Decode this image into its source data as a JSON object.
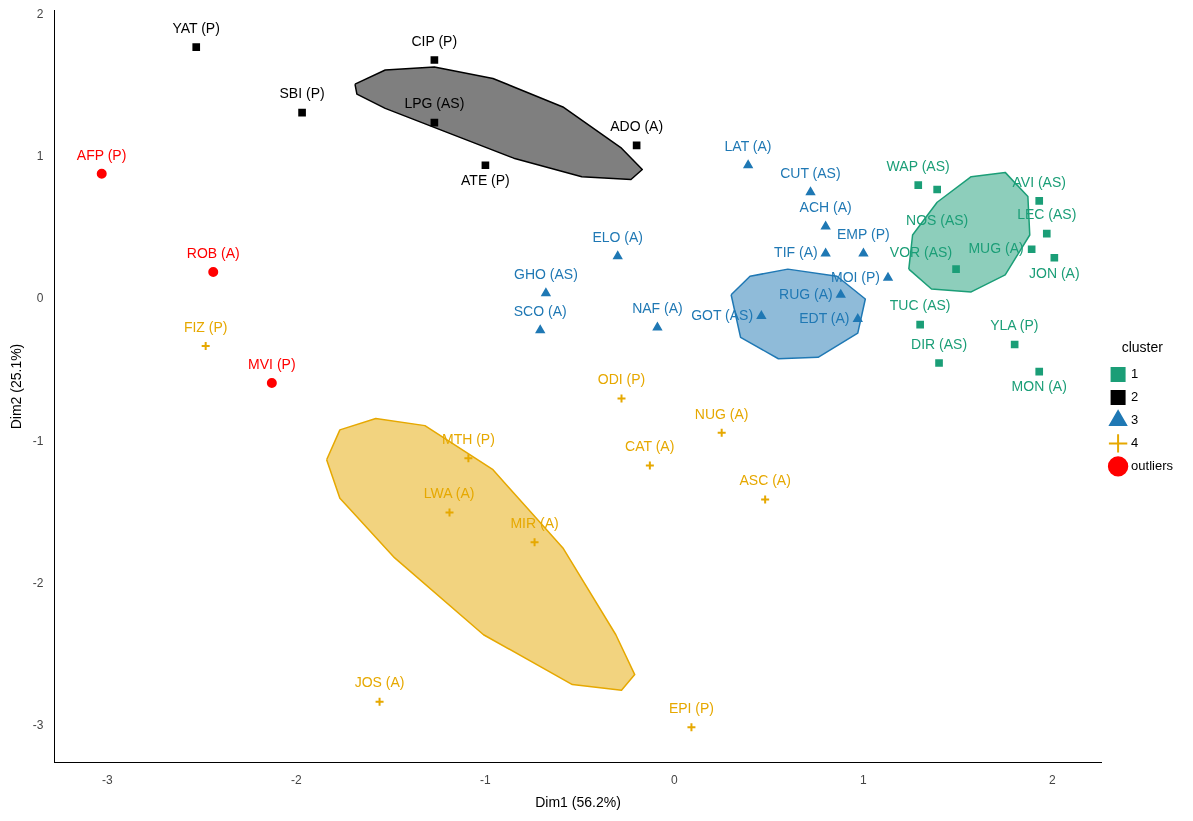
{
  "chart_data": {
    "type": "scatter",
    "xlabel": "Dim1 (56.2%)",
    "ylabel": "Dim2 (25.1%)",
    "legend_title": "cluster",
    "legend": "right",
    "grid": false,
    "xlim": [
      -3.28,
      2.26
    ],
    "ylim": [
      -3.26,
      2.03
    ],
    "xticks": [
      -3,
      -2,
      -1,
      0,
      1,
      2
    ],
    "yticks": [
      -3,
      -2,
      -1,
      0,
      1,
      2
    ],
    "series": [
      {
        "type": "area",
        "color": "#000000",
        "x": [
          -1.69,
          -1.53,
          -1.27,
          -0.96,
          -0.59,
          -0.28,
          -0.17,
          -0.23,
          -0.49,
          -0.85,
          -1.22,
          -1.53,
          -1.68,
          -1.69
        ],
        "values": [
          1.51,
          1.61,
          1.63,
          1.55,
          1.35,
          1.06,
          0.91,
          0.84,
          0.86,
          0.99,
          1.18,
          1.34,
          1.44,
          1.51
        ]
      },
      {
        "type": "area",
        "color": "#1f78b4",
        "x": [
          0.3,
          0.4,
          0.6,
          0.86,
          1.01,
          0.97,
          0.76,
          0.55,
          0.35,
          0.3
        ],
        "values": [
          0.03,
          0.16,
          0.21,
          0.16,
          0.0,
          -0.24,
          -0.41,
          -0.42,
          -0.27,
          0.03
        ]
      },
      {
        "type": "area",
        "color": "#1b9e77",
        "x": [
          1.24,
          1.26,
          1.39,
          1.57,
          1.75,
          1.87,
          1.88,
          1.75,
          1.57,
          1.36,
          1.24
        ],
        "values": [
          0.21,
          0.45,
          0.68,
          0.86,
          0.89,
          0.72,
          0.45,
          0.17,
          0.05,
          0.07,
          0.21
        ]
      },
      {
        "type": "area",
        "color": "#e6a800",
        "x": [
          -1.84,
          -1.77,
          -1.58,
          -1.32,
          -0.96,
          -0.59,
          -0.31,
          -0.21,
          -0.28,
          -0.54,
          -1.01,
          -1.48,
          -1.77,
          -1.84
        ],
        "values": [
          -1.13,
          -0.92,
          -0.84,
          -0.89,
          -1.2,
          -1.75,
          -2.36,
          -2.64,
          -2.75,
          -2.71,
          -2.36,
          -1.82,
          -1.4,
          -1.13
        ]
      },
      {
        "name": "1",
        "marker": "square",
        "color": "#1b9e77",
        "x": [
          1.29,
          1.39,
          1.93,
          1.97,
          1.89,
          2.01,
          1.49,
          1.3,
          1.8,
          1.4,
          1.93
        ],
        "values": [
          0.8,
          0.77,
          0.69,
          0.46,
          0.35,
          0.29,
          0.21,
          -0.18,
          -0.32,
          -0.45,
          -0.51
        ],
        "value_labels": [
          "WAP (AS)",
          "NOS (AS)",
          "AVI (AS)",
          "LEC (AS)",
          "MUG (A)",
          "JON (A)",
          "VOR (AS)",
          "TUC (AS)",
          "YLA (P)",
          "DIR (AS)",
          "MON (A)"
        ]
      },
      {
        "name": "2",
        "marker": "square",
        "color": "#000000",
        "x": [
          -2.53,
          -1.27,
          -1.97,
          -1.27,
          -0.2,
          -1.0
        ],
        "values": [
          1.77,
          1.68,
          1.31,
          1.24,
          1.08,
          0.94
        ],
        "value_labels": [
          "YAT (P)",
          "CIP (P)",
          "SBI (P)",
          "LPG (AS)",
          "ADO (A)",
          "ATE (P)"
        ]
      },
      {
        "name": "3",
        "marker": "triangle",
        "color": "#1f78b4",
        "x": [
          0.39,
          0.72,
          0.8,
          -0.3,
          0.8,
          1.0,
          1.13,
          -0.68,
          0.88,
          -0.71,
          -0.09,
          0.46,
          0.97
        ],
        "values": [
          0.94,
          0.75,
          0.51,
          0.3,
          0.32,
          0.32,
          0.15,
          0.04,
          0.03,
          -0.22,
          -0.2,
          -0.12,
          -0.14
        ],
        "value_labels": [
          "LAT (A)",
          "CUT (AS)",
          "ACH (A)",
          "ELO (A)",
          "TIF (A)",
          "EMP (P)",
          "MOI (P)",
          "GHO (AS)",
          "RUG (A)",
          "SCO (A)",
          "NAF (A)",
          "GOT (AS)",
          "EDT (A)"
        ]
      },
      {
        "name": "4",
        "marker": "cross",
        "color": "#e6a800",
        "x": [
          -2.48,
          -0.28,
          0.25,
          -1.09,
          -0.13,
          -1.19,
          0.48,
          -0.74,
          -1.56,
          0.09
        ],
        "values": [
          -0.33,
          -0.7,
          -0.94,
          -1.12,
          -1.17,
          -1.5,
          -1.41,
          -1.71,
          -2.83,
          -3.01
        ],
        "value_labels": [
          "FIZ (P)",
          "ODI (P)",
          "NUG (A)",
          "MTH (P)",
          "CAT (A)",
          "LWA (A)",
          "ASC (A)",
          "MIR (A)",
          "JOS (A)",
          "EPI (P)"
        ]
      },
      {
        "name": "outliers",
        "marker": "circle",
        "color": "#ff0000",
        "x": [
          -3.03,
          -2.44,
          -2.13
        ],
        "values": [
          0.88,
          0.19,
          -0.59
        ],
        "value_labels": [
          "AFP (P)",
          "ROB (A)",
          "MVI (P)"
        ]
      }
    ]
  }
}
